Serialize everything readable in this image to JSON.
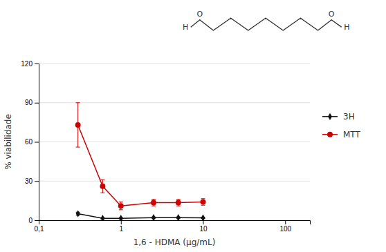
{
  "chart_data": {
    "type": "line",
    "x": [
      0.3,
      0.6,
      1.0,
      2.5,
      5.0,
      10.0
    ],
    "series": [
      {
        "name": "3H",
        "color": "#111111",
        "marker": "diamond",
        "values": [
          5.0,
          1.5,
          1.5,
          2.0,
          2.0,
          1.8
        ],
        "errors": [
          1.2,
          0.5,
          0.5,
          0.5,
          0.5,
          0.5
        ]
      },
      {
        "name": "MTT",
        "color": "#cc0000",
        "marker": "circle",
        "values": [
          73.0,
          26.0,
          11.0,
          13.5,
          13.5,
          14.0
        ],
        "errors": [
          17.0,
          5.0,
          3.0,
          2.5,
          2.5,
          2.5
        ]
      }
    ],
    "x_label": "1,6 - HDMA (μg/mL)",
    "y_label": "% viabilidade",
    "log": "x",
    "xlim": [
      0.1,
      200
    ],
    "xticks": [
      {
        "value": 0.1,
        "label": "0,1"
      },
      1,
      10,
      100
    ],
    "ylim": [
      0,
      120
    ],
    "yticks": [
      0,
      30,
      60,
      90,
      120
    ],
    "grid": "y",
    "legend": "right",
    "annotations": [
      "H",
      "O",
      "O",
      "H"
    ]
  }
}
